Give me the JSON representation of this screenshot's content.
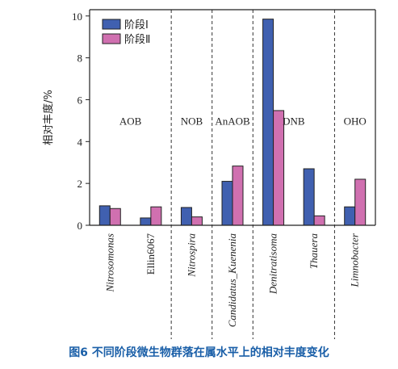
{
  "caption": "图6   不同阶段微生物群落在属水平上的相对丰度变化",
  "chart_data": {
    "type": "bar",
    "ylabel": "相对丰度/%",
    "ylim": [
      0,
      10.3
    ],
    "yticks": [
      0,
      2,
      4,
      6,
      8,
      10
    ],
    "categories": [
      "Nitrosomonas",
      "Ellin6067",
      "Nitrospira",
      "Candidatus_Kuenenia",
      "Denitratisoma",
      "Thauera",
      "Limnobacter"
    ],
    "category_italic": [
      true,
      false,
      true,
      true,
      true,
      true,
      true
    ],
    "series": [
      {
        "name": "阶段Ⅰ",
        "color": "#4060b0",
        "values": [
          0.93,
          0.35,
          0.85,
          2.1,
          9.85,
          2.7,
          0.88
        ]
      },
      {
        "name": "阶段Ⅱ",
        "color": "#d070b0",
        "values": [
          0.8,
          0.88,
          0.4,
          2.83,
          5.48,
          0.45,
          2.2
        ]
      }
    ],
    "groups": [
      {
        "label": "AOB",
        "from": 0,
        "to": 1
      },
      {
        "label": "NOB",
        "from": 2,
        "to": 2
      },
      {
        "label": "AnAOB",
        "from": 3,
        "to": 3
      },
      {
        "label": "DNB",
        "from": 4,
        "to": 5
      },
      {
        "label": "OHO",
        "from": 6,
        "to": 6
      }
    ],
    "group_label_y": 4.8,
    "legend_position": "top-left"
  }
}
